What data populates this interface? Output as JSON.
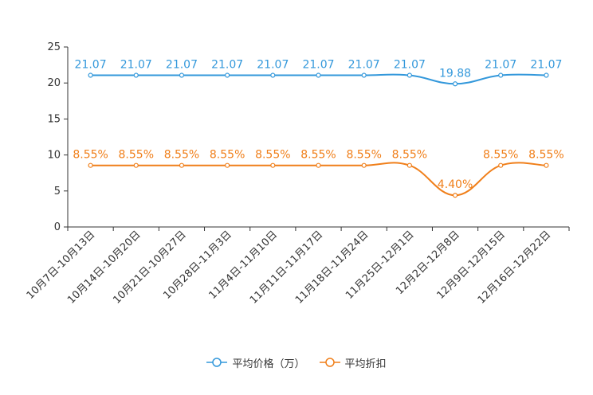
{
  "chart_data": {
    "type": "line",
    "categories": [
      "10月7日-10月13日",
      "10月14日-10月20日",
      "10月21日-10月27日",
      "10月28日-11月3日",
      "11月4日-11月10日",
      "11月11日-11月17日",
      "11月18日-11月24日",
      "11月25日-12月1日",
      "12月2日-12月8日",
      "12月9日-12月15日",
      "12月16日-12月22日"
    ],
    "series": [
      {
        "name": "平均价格（万）",
        "color": "#3398DB",
        "values": [
          21.07,
          21.07,
          21.07,
          21.07,
          21.07,
          21.07,
          21.07,
          21.07,
          19.88,
          21.07,
          21.07
        ],
        "labels": [
          "21.07",
          "21.07",
          "21.07",
          "21.07",
          "21.07",
          "21.07",
          "21.07",
          "21.07",
          "19.88",
          "21.07",
          "21.07"
        ]
      },
      {
        "name": "平均折扣",
        "color": "#F07F1A",
        "values": [
          8.55,
          8.55,
          8.55,
          8.55,
          8.55,
          8.55,
          8.55,
          8.55,
          4.4,
          8.55,
          8.55
        ],
        "labels": [
          "8.55%",
          "8.55%",
          "8.55%",
          "8.55%",
          "8.55%",
          "8.55%",
          "8.55%",
          "8.55%",
          "4.40%",
          "8.55%",
          "8.55%"
        ]
      }
    ],
    "yticks": [
      "0",
      "5",
      "10",
      "15",
      "20",
      "25"
    ],
    "ylim": [
      0,
      25
    ],
    "title": "",
    "xlabel": "",
    "ylabel": ""
  }
}
